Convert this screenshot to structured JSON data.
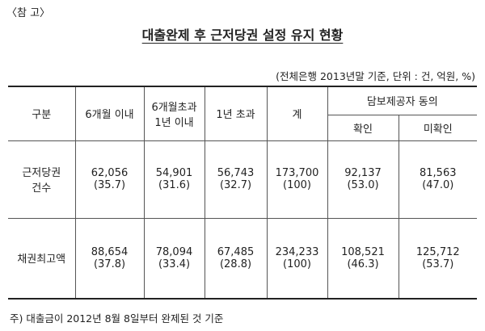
{
  "header": {
    "label": "〈참 고〉",
    "title": "대출완제 후 근저당권 설정 유지 현황",
    "note": "(전체은행 2013년말 기준, 단위 : 건, 억원, %)"
  },
  "table": {
    "columns": [
      [
        "구분"
      ],
      [
        "6개월 이내"
      ],
      [
        "6개월초과",
        "1년 이내"
      ],
      [
        "1년 초과"
      ],
      [
        "계"
      ]
    ],
    "group": "담보제공자 동의",
    "subcolumns": [
      "확인",
      "미확인"
    ],
    "rows": [
      {
        "label": [
          "근저당권",
          "건수"
        ],
        "values": [
          "62,056",
          "54,901",
          "56,743",
          "173,700",
          "92,137",
          "81,563"
        ],
        "shares": [
          "(35.7)",
          "(31.6)",
          "(32.7)",
          "(100)",
          "(53.0)",
          "(47.0)"
        ]
      },
      {
        "label": [
          "채권최고액"
        ],
        "values": [
          "88,654",
          "78,094",
          "67,485",
          "234,233",
          "108,521",
          "125,712"
        ],
        "shares": [
          "(37.8)",
          "(33.4)",
          "(28.8)",
          "(100)",
          "(46.3)",
          "(53.7)"
        ]
      }
    ]
  },
  "footnote": "주) 대출금이 2012년 8월 8일부터 완제된 것 기준"
}
